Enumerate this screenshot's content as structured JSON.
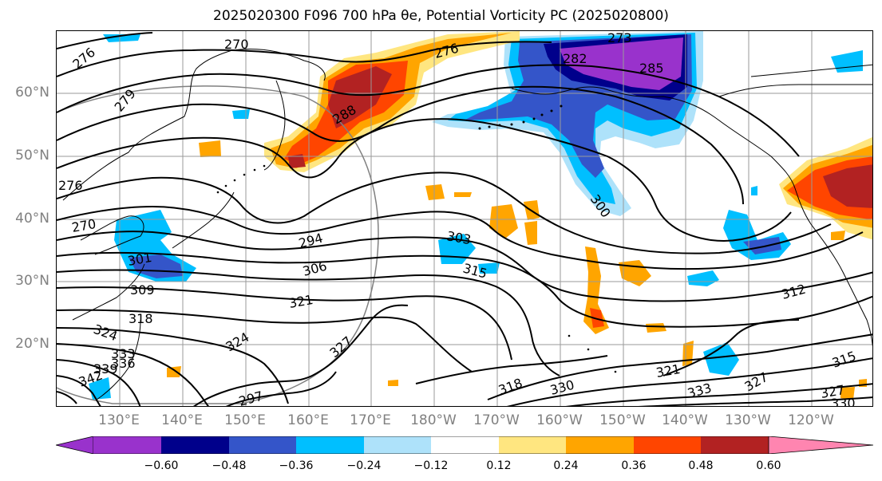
{
  "title": "2025020300 F096 700 hPa θe, Potential Vorticity PC (2025020800)",
  "lat_labels": [
    "60°N",
    "50°N",
    "40°N",
    "30°N",
    "20°N"
  ],
  "lon_labels": [
    "130°E",
    "140°E",
    "150°E",
    "160°E",
    "170°E",
    "180°W",
    "170°W",
    "160°W",
    "150°W",
    "140°W",
    "130°W",
    "120°W"
  ],
  "colorbar": {
    "colors": [
      "#9932cc",
      "#00008b",
      "#3455c9",
      "#00bfff",
      "#aee2fa",
      "#ffffff",
      "#ffe680",
      "#ffa500",
      "#ff4500",
      "#b22222",
      "#ff85b0"
    ],
    "tick_labels": [
      "−0.60",
      "−0.48",
      "−0.36",
      "−0.24",
      "−0.12",
      "0.12",
      "0.24",
      "0.36",
      "0.48",
      "0.60"
    ],
    "min_arrow_color": "#9932cc",
    "max_arrow_color": "#ff85b0"
  },
  "contour_labels": [
    "270",
    "276",
    "279",
    "276",
    "288",
    "282",
    "285",
    "273",
    "276",
    "309",
    "294",
    "306",
    "303",
    "315",
    "300",
    "321",
    "318",
    "324",
    "333",
    "336",
    "339",
    "342",
    "327",
    "330",
    "321",
    "327",
    "312",
    "315",
    "318",
    "324",
    "333",
    "327",
    "330",
    "301",
    "270",
    "297"
  ],
  "colors": {
    "contour": "#000000",
    "grid": "#9a9a9a",
    "coast": "#000000",
    "axis_label": "#808080"
  }
}
